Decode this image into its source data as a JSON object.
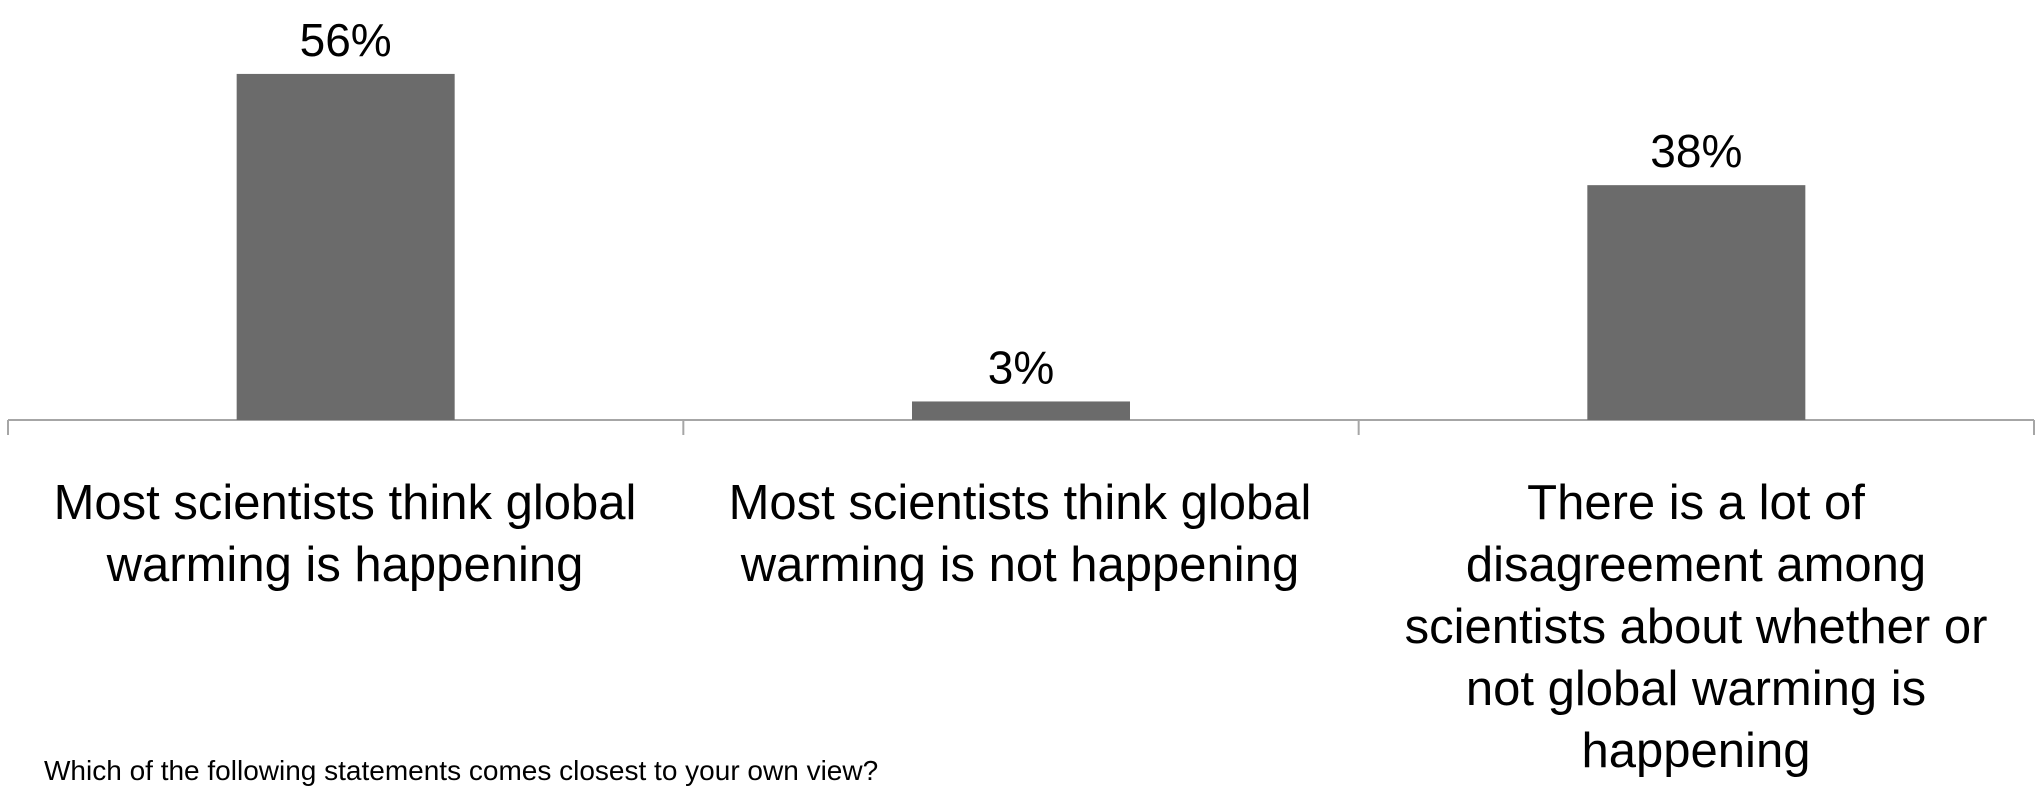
{
  "chart_data": {
    "type": "bar",
    "categories": [
      "Most scientists think global warming is happening",
      "Most scientists think global warming is not happening",
      "There is a lot of disagreement among scientists about whether or not global warming is happening"
    ],
    "values": [
      56,
      3,
      38
    ],
    "data_labels": [
      "56%",
      "3%",
      "38%"
    ],
    "title": "",
    "xlabel": "",
    "ylabel": "",
    "ylim": [
      0,
      60
    ],
    "grid": false,
    "legend": "none",
    "bar_color": "#6b6b6b",
    "axis_color": "#a6a6a6"
  },
  "question": "Which of the following statements comes closest to your own view?"
}
